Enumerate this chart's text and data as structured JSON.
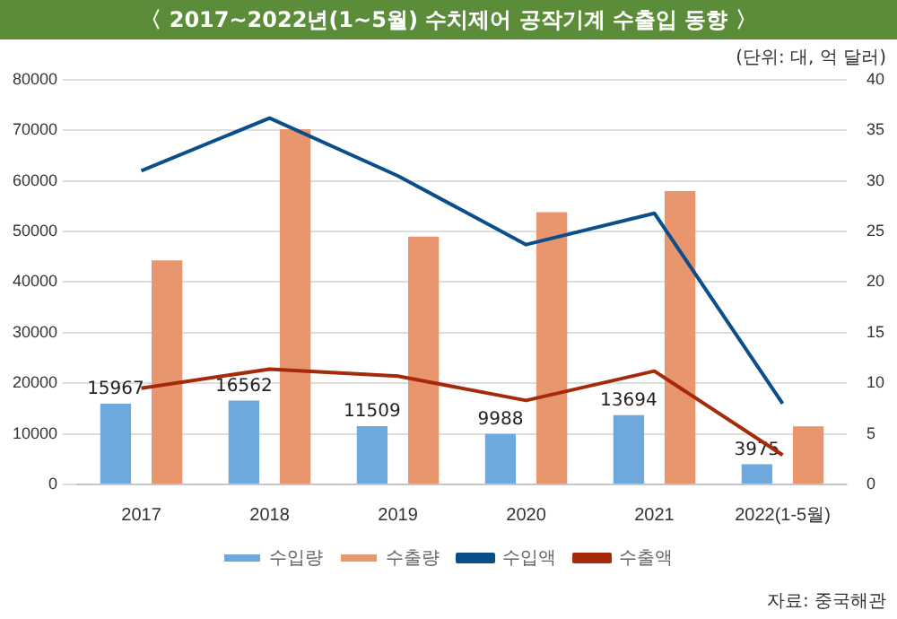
{
  "chart_data": {
    "type": "bar",
    "title": "〈 2017~2022년(1~5월) 수치제어 공작기계 수출입 동향 〉",
    "categories": [
      "2017",
      "2018",
      "2019",
      "2020",
      "2021",
      "2022(1-5월)"
    ],
    "series": [
      {
        "name": "수입량",
        "color": "#6fa8dc",
        "values": [
          15967,
          16562,
          11509,
          9988,
          13694,
          3975
        ],
        "value_labels": [
          "15967",
          "16562",
          "11509",
          "9988",
          "13694",
          "3975"
        ]
      },
      {
        "name": "수출량",
        "color": "#e9956e",
        "values": [
          44300,
          70200,
          49000,
          53800,
          58000,
          11500
        ]
      },
      {
        "name": "수입액",
        "type": "line",
        "axis": "y2",
        "color": "#0a4f8a",
        "values": [
          31.0,
          36.2,
          30.5,
          23.7,
          26.8,
          8.0
        ]
      },
      {
        "name": "수출액",
        "type": "line",
        "axis": "y2",
        "color": "#a52a0a",
        "values": [
          9.5,
          11.4,
          10.7,
          8.3,
          11.2,
          2.9
        ]
      }
    ],
    "ylim": [
      0,
      80000
    ],
    "yticks": [
      0,
      10000,
      20000,
      30000,
      40000,
      50000,
      60000,
      70000,
      80000
    ],
    "y2lim": [
      0,
      40
    ],
    "y2ticks": [
      0,
      5,
      10,
      15,
      20,
      25,
      30,
      35,
      40
    ],
    "grid": "y",
    "legend": "bottom",
    "marker": "none",
    "annotations": [
      "(단위: 대, 억 달러)",
      "자료: 중국해관"
    ]
  }
}
